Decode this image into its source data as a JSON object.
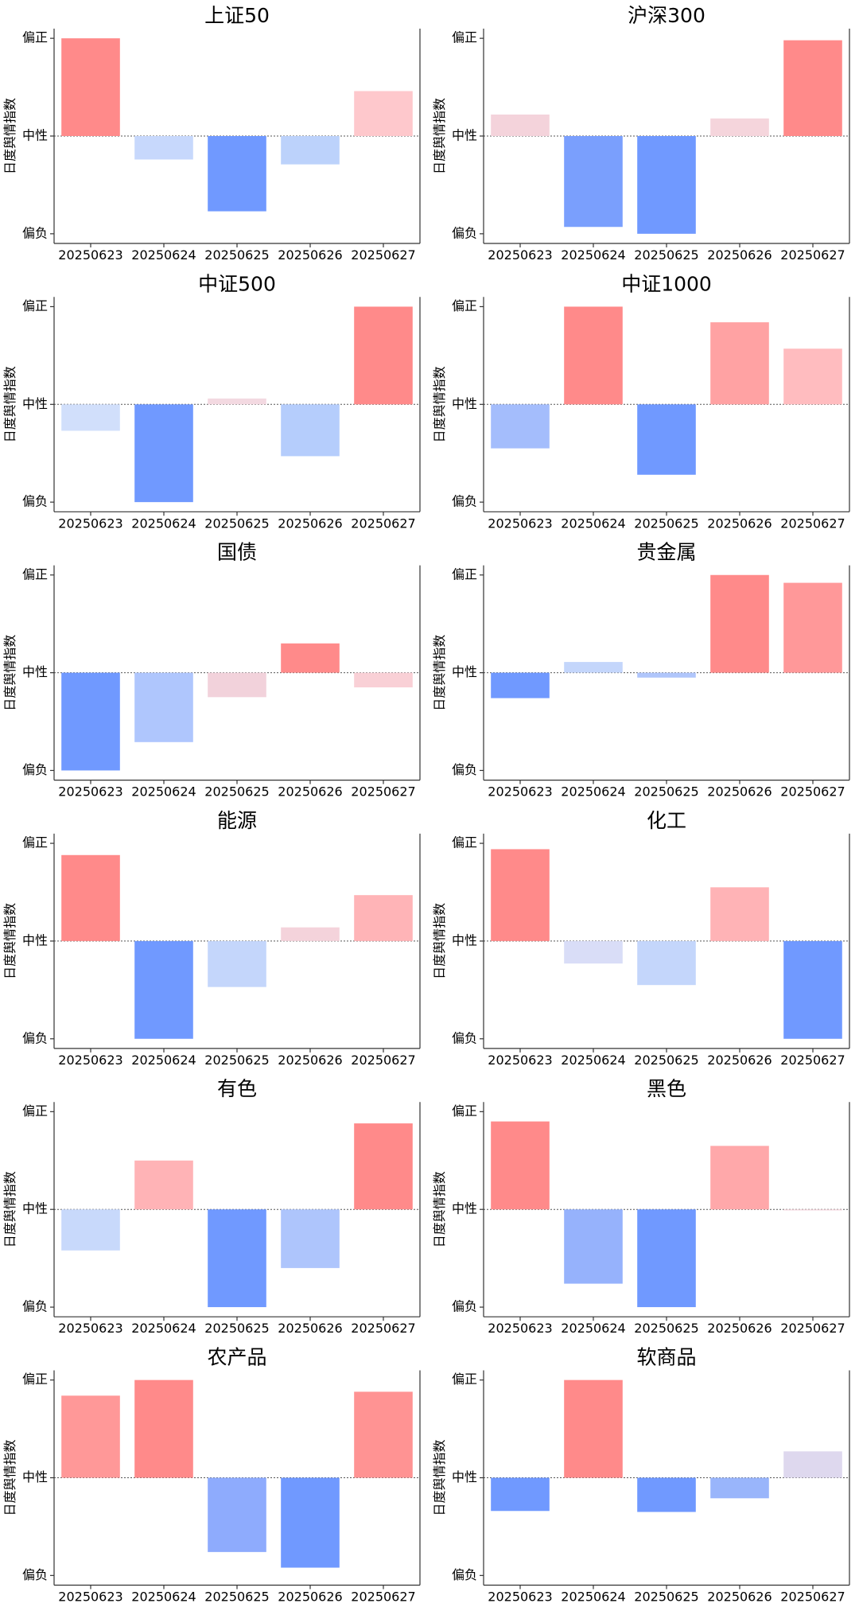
{
  "palette": {
    "strong_positive": "#ff8a8a",
    "strong_negative": "#7099ff",
    "light_positive": "#f4d3db",
    "light_negative": "#c8d9fb"
  },
  "chart_data": [
    {
      "type": "bar",
      "title": "上证50",
      "ylabel": "日度舆情指数",
      "yticks": [
        "偏负",
        "中性",
        "偏正"
      ],
      "ylim": [
        -1,
        1
      ],
      "categories": [
        "20250623",
        "20250624",
        "20250625",
        "20250626",
        "20250627"
      ],
      "values": [
        1.0,
        -0.24,
        -0.77,
        -0.29,
        0.46
      ],
      "colors": [
        "#ff8a8a",
        "#c7d8fc",
        "#7099ff",
        "#bcd2fb",
        "#fec8cc"
      ]
    },
    {
      "type": "bar",
      "title": "沪深300",
      "ylabel": "日度舆情指数",
      "yticks": [
        "偏负",
        "中性",
        "偏正"
      ],
      "ylim": [
        -1,
        1
      ],
      "categories": [
        "20250623",
        "20250624",
        "20250625",
        "20250626",
        "20250627"
      ],
      "values": [
        0.22,
        -0.93,
        -1.0,
        0.18,
        0.98
      ],
      "colors": [
        "#f4d3db",
        "#7a9ffd",
        "#7099ff",
        "#f5d5dc",
        "#ff8a8a"
      ]
    },
    {
      "type": "bar",
      "title": "中证500",
      "ylabel": "日度舆情指数",
      "yticks": [
        "偏负",
        "中性",
        "偏正"
      ],
      "ylim": [
        -1,
        1
      ],
      "categories": [
        "20250623",
        "20250624",
        "20250625",
        "20250626",
        "20250627"
      ],
      "values": [
        -0.27,
        -1.0,
        0.06,
        -0.53,
        1.0
      ],
      "colors": [
        "#d1dffb",
        "#7099ff",
        "#f3d9e1",
        "#b5cdfc",
        "#ff8a8a"
      ]
    },
    {
      "type": "bar",
      "title": "中证1000",
      "ylabel": "日度舆情指数",
      "yticks": [
        "偏负",
        "中性",
        "偏正"
      ],
      "ylim": [
        -1,
        1
      ],
      "categories": [
        "20250623",
        "20250624",
        "20250625",
        "20250626",
        "20250627"
      ],
      "values": [
        -0.45,
        1.0,
        -0.72,
        0.84,
        0.57
      ],
      "colors": [
        "#a4bdfc",
        "#ff8a8a",
        "#7099ff",
        "#ffa2a3",
        "#ffbcbf"
      ]
    },
    {
      "type": "bar",
      "title": "国债",
      "ylabel": "日度舆情指数",
      "yticks": [
        "偏负",
        "中性",
        "偏正"
      ],
      "ylim": [
        -1,
        1
      ],
      "categories": [
        "20250623",
        "20250624",
        "20250625",
        "20250626",
        "20250627"
      ],
      "values": [
        -1.0,
        -0.71,
        -0.25,
        0.3,
        -0.15
      ],
      "colors": [
        "#7099ff",
        "#afc6fd",
        "#f2d2db",
        "#ff8a8a",
        "#f9d0d6"
      ]
    },
    {
      "type": "bar",
      "title": "贵金属",
      "ylabel": "日度舆情指数",
      "yticks": [
        "偏负",
        "中性",
        "偏正"
      ],
      "ylim": [
        -1,
        1
      ],
      "categories": [
        "20250623",
        "20250624",
        "20250625",
        "20250626",
        "20250627"
      ],
      "values": [
        -0.26,
        0.11,
        -0.05,
        1.0,
        0.92
      ],
      "colors": [
        "#7099ff",
        "#c4d6fb",
        "#b0c6fb",
        "#ff8a8a",
        "#ff9899"
      ]
    },
    {
      "type": "bar",
      "title": "能源",
      "ylabel": "日度舆情指数",
      "yticks": [
        "偏负",
        "中性",
        "偏正"
      ],
      "ylim": [
        -1,
        1
      ],
      "categories": [
        "20250623",
        "20250624",
        "20250625",
        "20250626",
        "20250627"
      ],
      "values": [
        0.88,
        -1.0,
        -0.47,
        0.14,
        0.47
      ],
      "colors": [
        "#ff8a8a",
        "#7099ff",
        "#c4d6fb",
        "#f4d3db",
        "#ffb4b7"
      ]
    },
    {
      "type": "bar",
      "title": "化工",
      "ylabel": "日度舆情指数",
      "yticks": [
        "偏负",
        "中性",
        "偏正"
      ],
      "ylim": [
        -1,
        1
      ],
      "categories": [
        "20250623",
        "20250624",
        "20250625",
        "20250626",
        "20250627"
      ],
      "values": [
        0.94,
        -0.23,
        -0.45,
        0.55,
        -1.0
      ],
      "colors": [
        "#ff8a8a",
        "#d9ddf7",
        "#c4d6fb",
        "#ffb3b6",
        "#7099ff"
      ]
    },
    {
      "type": "bar",
      "title": "有色",
      "ylabel": "日度舆情指数",
      "yticks": [
        "偏负",
        "中性",
        "偏正"
      ],
      "ylim": [
        -1,
        1
      ],
      "categories": [
        "20250623",
        "20250624",
        "20250625",
        "20250626",
        "20250627"
      ],
      "values": [
        -0.42,
        0.5,
        -1.0,
        -0.6,
        0.88
      ],
      "colors": [
        "#c8d9fb",
        "#ffb3b6",
        "#7099ff",
        "#aec5fc",
        "#ff8a8a"
      ]
    },
    {
      "type": "bar",
      "title": "黑色",
      "ylabel": "日度舆情指数",
      "yticks": [
        "偏负",
        "中性",
        "偏正"
      ],
      "ylim": [
        -1,
        1
      ],
      "categories": [
        "20250623",
        "20250624",
        "20250625",
        "20250626",
        "20250627"
      ],
      "values": [
        0.9,
        -0.76,
        -1.0,
        0.65,
        -0.01
      ],
      "colors": [
        "#ff8a8a",
        "#96b2fc",
        "#7099ff",
        "#ffa8aa",
        "#f4d3db"
      ]
    },
    {
      "type": "bar",
      "title": "农产品",
      "ylabel": "日度舆情指数",
      "yticks": [
        "偏负",
        "中性",
        "偏正"
      ],
      "ylim": [
        -1,
        1
      ],
      "categories": [
        "20250623",
        "20250624",
        "20250625",
        "20250626",
        "20250627"
      ],
      "values": [
        0.84,
        1.0,
        -0.76,
        -0.92,
        0.88
      ],
      "colors": [
        "#ff9898",
        "#ff8a8a",
        "#8eabfd",
        "#7099ff",
        "#ff9393"
      ]
    },
    {
      "type": "bar",
      "title": "软商品",
      "ylabel": "日度舆情指数",
      "yticks": [
        "偏负",
        "中性",
        "偏正"
      ],
      "ylim": [
        -1,
        1
      ],
      "categories": [
        "20250623",
        "20250624",
        "20250625",
        "20250626",
        "20250627"
      ],
      "values": [
        -0.34,
        1.0,
        -0.35,
        -0.21,
        0.27
      ],
      "colors": [
        "#7099ff",
        "#ff8a8a",
        "#7099ff",
        "#99b5fb",
        "#ded8ee"
      ]
    }
  ]
}
